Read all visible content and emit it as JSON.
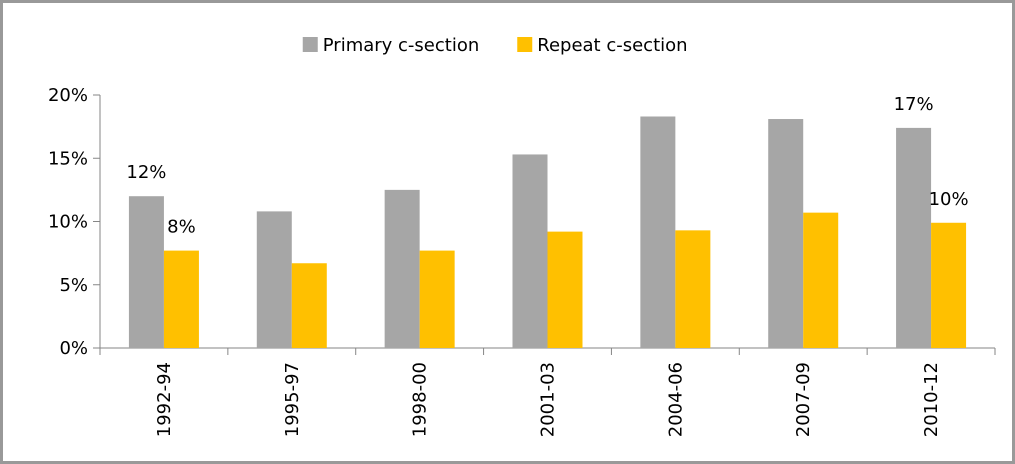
{
  "chart_data": {
    "type": "bar",
    "categories": [
      "1992-94",
      "1995-97",
      "1998-00",
      "2001-03",
      "2004-06",
      "2007-09",
      "2010-12"
    ],
    "series": [
      {
        "name": "Primary c-section",
        "color": "#a6a6a6",
        "values": [
          12.0,
          10.8,
          12.5,
          15.3,
          18.3,
          18.1,
          17.4
        ],
        "value_labels": [
          "12%",
          null,
          null,
          null,
          null,
          null,
          "17%"
        ]
      },
      {
        "name": "Repeat c-section",
        "color": "#ffc000",
        "values": [
          7.7,
          6.7,
          7.7,
          9.2,
          9.3,
          10.7,
          9.9
        ],
        "value_labels": [
          "8%",
          null,
          null,
          null,
          null,
          null,
          "10%"
        ]
      }
    ],
    "ylim": [
      0,
      20
    ],
    "yticks": [
      {
        "value": 0,
        "label": "0%"
      },
      {
        "value": 5,
        "label": "5%"
      },
      {
        "value": 10,
        "label": "10%"
      },
      {
        "value": 15,
        "label": "15%"
      },
      {
        "value": 20,
        "label": "20%"
      }
    ],
    "legend": "top",
    "grid": false
  }
}
